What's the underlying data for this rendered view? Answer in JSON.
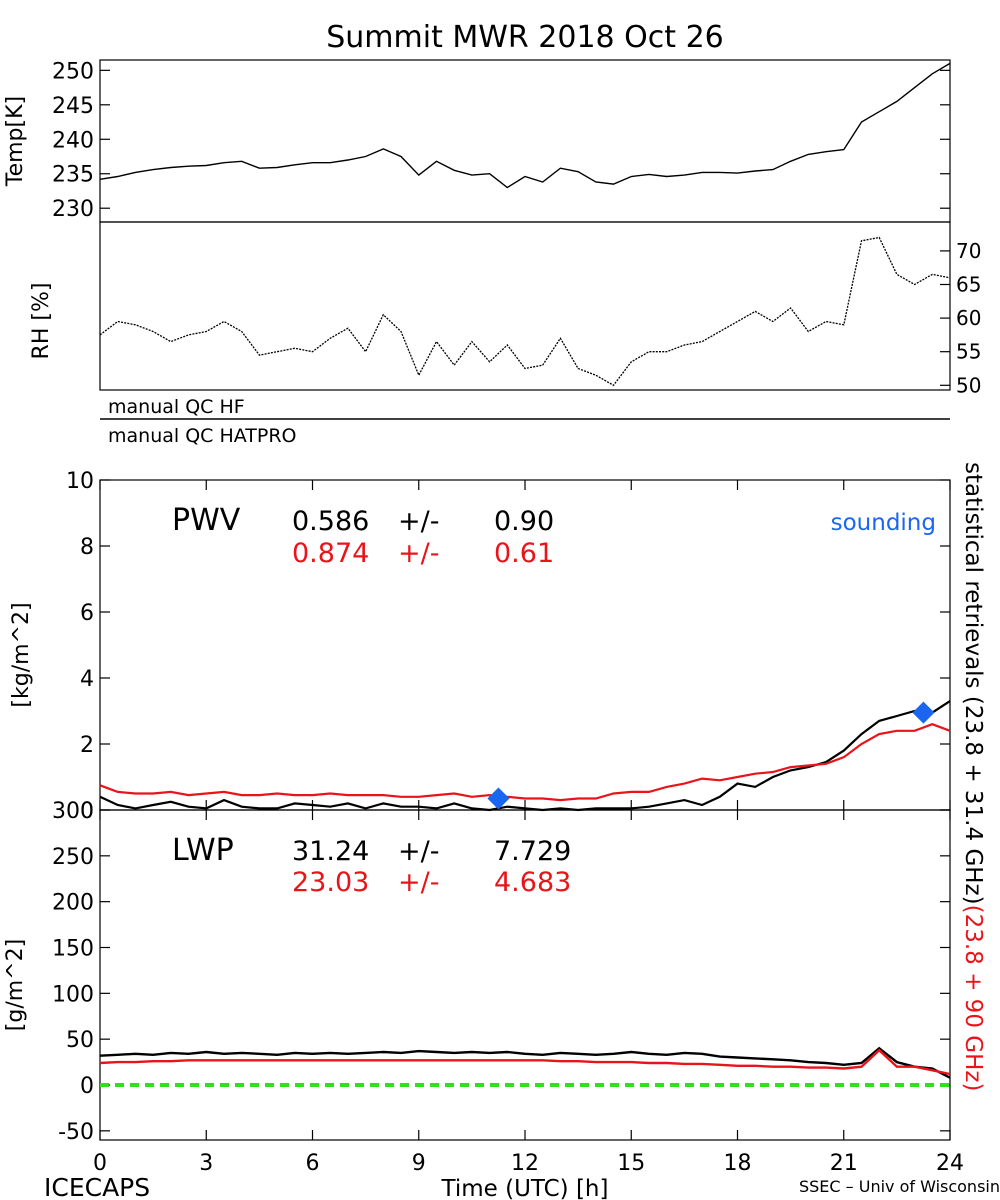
{
  "title": "Summit MWR 2018 Oct 26",
  "footer": {
    "left": "ICECAPS",
    "center": "Time (UTC) [h]",
    "right": "SSEC – Univ of Wisconsin"
  },
  "right_labels": {
    "black": "statistical retrievals (23.8 + 31.4 GHz)",
    "red": "(23.8 + 90 GHz)"
  },
  "colors": {
    "black": "#000000",
    "red": "#e8141a",
    "blue": "#1a66f0",
    "green": "#33dd22"
  },
  "chart_data": [
    {
      "id": "temp",
      "type": "line",
      "ylabel": "Temp[K]",
      "ylim": [
        228,
        251.5
      ],
      "yticks": [
        230,
        235,
        240,
        245,
        250
      ],
      "ytick_labels": [
        "230",
        "235",
        "240",
        "245",
        "250"
      ],
      "xlim": [
        0,
        24
      ],
      "series": [
        {
          "color": "black",
          "x": [
            0,
            0.5,
            1,
            1.5,
            2,
            2.5,
            3,
            3.5,
            4,
            4.5,
            5,
            5.5,
            6,
            6.5,
            7,
            7.5,
            8,
            8.5,
            9,
            9.5,
            10,
            10.5,
            11,
            11.5,
            12,
            12.5,
            13,
            13.5,
            14,
            14.5,
            15,
            15.5,
            16,
            16.5,
            17,
            17.5,
            18,
            18.5,
            19,
            19.5,
            20,
            20.5,
            21,
            21.5,
            22,
            22.5,
            23,
            23.5,
            24
          ],
          "y": [
            234.2,
            234.6,
            235.2,
            235.6,
            235.9,
            236.1,
            236.2,
            236.6,
            236.8,
            235.8,
            235.9,
            236.3,
            236.6,
            236.6,
            237.0,
            237.5,
            238.6,
            237.5,
            234.8,
            236.8,
            235.5,
            234.8,
            235.0,
            233.0,
            234.6,
            233.8,
            235.8,
            235.3,
            233.8,
            233.5,
            234.6,
            234.9,
            234.6,
            234.8,
            235.2,
            235.2,
            235.1,
            235.4,
            235.6,
            236.8,
            237.8,
            238.2,
            238.5,
            242.5,
            244.0,
            245.5,
            247.5,
            249.5,
            251.0
          ]
        }
      ]
    },
    {
      "id": "rh",
      "type": "line",
      "ylabel": "RH [%]",
      "ylim": [
        49.3,
        74.3
      ],
      "yticks": [
        50,
        55,
        60,
        65,
        70
      ],
      "ytick_labels": [
        "50",
        "55",
        "60",
        "65",
        "70"
      ],
      "xlim": [
        0,
        24
      ],
      "series": [
        {
          "color": "black",
          "x": [
            0,
            0.5,
            1,
            1.5,
            2,
            2.5,
            3,
            3.5,
            4,
            4.5,
            5,
            5.5,
            6,
            6.5,
            7,
            7.5,
            8,
            8.5,
            9,
            9.5,
            10,
            10.5,
            11,
            11.5,
            12,
            12.5,
            13,
            13.5,
            14,
            14.5,
            15,
            15.5,
            16,
            16.5,
            17,
            17.5,
            18,
            18.5,
            19,
            19.5,
            20,
            20.5,
            21,
            21.5,
            22,
            22.5,
            23,
            23.5,
            24
          ],
          "y": [
            57.5,
            59.5,
            59.0,
            58.0,
            56.5,
            57.5,
            58.0,
            59.5,
            58.0,
            54.5,
            55.0,
            55.5,
            55.0,
            57.0,
            58.5,
            55.0,
            60.5,
            58.0,
            51.5,
            56.5,
            53.0,
            56.5,
            53.5,
            56.0,
            52.5,
            53.0,
            57.0,
            52.5,
            51.5,
            50.0,
            53.5,
            55.0,
            55.0,
            56.0,
            56.5,
            58.0,
            59.5,
            61.0,
            59.5,
            61.5,
            58.0,
            59.5,
            59.0,
            71.5,
            72.0,
            66.5,
            65.0,
            66.5,
            66.0
          ]
        }
      ]
    },
    {
      "id": "pwv",
      "type": "line",
      "panel_label": "PWV",
      "ylabel": "[kg/m^2]",
      "ylim": [
        0,
        10
      ],
      "yticks": [
        0,
        2,
        4,
        6,
        8,
        10
      ],
      "ytick_labels": [
        "0",
        "2",
        "4",
        "6",
        "8",
        "10"
      ],
      "xlim": [
        0,
        24
      ],
      "stats": [
        {
          "color": "black",
          "mean": "0.586",
          "pm": "+/-",
          "sd": "0.90"
        },
        {
          "color": "red",
          "mean": "0.874",
          "pm": "+/-",
          "sd": "0.61"
        }
      ],
      "legend": {
        "text": "sounding",
        "color": "blue",
        "position": "top-right"
      },
      "series": [
        {
          "color": "black",
          "x": [
            0,
            0.5,
            1,
            1.5,
            2,
            2.5,
            3,
            3.5,
            4,
            4.5,
            5,
            5.5,
            6,
            6.5,
            7,
            7.5,
            8,
            8.5,
            9,
            9.5,
            10,
            10.5,
            11,
            11.5,
            12,
            12.5,
            13,
            13.5,
            14,
            14.5,
            15,
            15.5,
            16,
            16.5,
            17,
            17.5,
            18,
            18.5,
            19,
            19.5,
            20,
            20.5,
            21,
            21.5,
            22,
            22.5,
            23,
            23.5,
            24
          ],
          "y": [
            0.4,
            0.15,
            0.05,
            0.15,
            0.25,
            0.1,
            0.05,
            0.3,
            0.1,
            0.05,
            0.05,
            0.2,
            0.15,
            0.1,
            0.2,
            0.05,
            0.2,
            0.1,
            0.1,
            0.05,
            0.2,
            0.05,
            0.0,
            0.1,
            0.05,
            0.0,
            0.05,
            0.0,
            0.05,
            0.05,
            0.05,
            0.1,
            0.2,
            0.3,
            0.15,
            0.4,
            0.8,
            0.7,
            1.0,
            1.2,
            1.3,
            1.45,
            1.8,
            2.3,
            2.7,
            2.85,
            3.0,
            2.95,
            3.3
          ]
        },
        {
          "color": "red",
          "x": [
            0,
            0.5,
            1,
            1.5,
            2,
            2.5,
            3,
            3.5,
            4,
            4.5,
            5,
            5.5,
            6,
            6.5,
            7,
            7.5,
            8,
            8.5,
            9,
            9.5,
            10,
            10.5,
            11,
            11.5,
            12,
            12.5,
            13,
            13.5,
            14,
            14.5,
            15,
            15.5,
            16,
            16.5,
            17,
            17.5,
            18,
            18.5,
            19,
            19.5,
            20,
            20.5,
            21,
            21.5,
            22,
            22.5,
            23,
            23.5,
            24
          ],
          "y": [
            0.75,
            0.55,
            0.5,
            0.5,
            0.55,
            0.45,
            0.5,
            0.55,
            0.45,
            0.45,
            0.5,
            0.45,
            0.45,
            0.5,
            0.45,
            0.45,
            0.45,
            0.4,
            0.4,
            0.45,
            0.5,
            0.4,
            0.45,
            0.4,
            0.35,
            0.35,
            0.3,
            0.35,
            0.35,
            0.5,
            0.55,
            0.55,
            0.7,
            0.8,
            0.95,
            0.9,
            1.0,
            1.1,
            1.15,
            1.3,
            1.35,
            1.4,
            1.6,
            2.0,
            2.3,
            2.4,
            2.4,
            2.6,
            2.4
          ]
        },
        {
          "color": "blue",
          "marker": "diamond",
          "name": "sounding",
          "x": [
            11.25,
            23.25
          ],
          "y": [
            0.35,
            2.95
          ]
        }
      ]
    },
    {
      "id": "lwp",
      "type": "line",
      "panel_label": "LWP",
      "ylabel": "[g/m^2]",
      "ylim": [
        -60,
        300
      ],
      "yticks": [
        -50,
        0,
        50,
        100,
        150,
        200,
        250,
        300
      ],
      "ytick_labels": [
        "-50",
        "0",
        "50",
        "100",
        "150",
        "200",
        "250",
        "300"
      ],
      "xlim": [
        0,
        24
      ],
      "xticks": [
        0,
        3,
        6,
        9,
        12,
        15,
        18,
        21,
        24
      ],
      "xtick_labels": [
        "0",
        "3",
        "6",
        "9",
        "12",
        "15",
        "18",
        "21",
        "24"
      ],
      "stats": [
        {
          "color": "black",
          "mean": "31.24",
          "pm": "+/-",
          "sd": "7.729"
        },
        {
          "color": "red",
          "mean": "23.03",
          "pm": "+/-",
          "sd": "4.683"
        }
      ],
      "series": [
        {
          "color": "black",
          "x": [
            0,
            0.5,
            1,
            1.5,
            2,
            2.5,
            3,
            3.5,
            4,
            4.5,
            5,
            5.5,
            6,
            6.5,
            7,
            7.5,
            8,
            8.5,
            9,
            9.5,
            10,
            10.5,
            11,
            11.5,
            12,
            12.5,
            13,
            13.5,
            14,
            14.5,
            15,
            15.5,
            16,
            16.5,
            17,
            17.5,
            18,
            18.5,
            19,
            19.5,
            20,
            20.5,
            21,
            21.5,
            22,
            22.5,
            23,
            23.5,
            24
          ],
          "y": [
            32,
            33,
            34,
            33,
            35,
            34,
            36,
            34,
            35,
            34,
            33,
            35,
            34,
            35,
            34,
            35,
            36,
            35,
            37,
            36,
            35,
            36,
            35,
            36,
            34,
            33,
            35,
            34,
            33,
            34,
            36,
            34,
            33,
            35,
            34,
            31,
            30,
            29,
            28,
            27,
            25,
            24,
            22,
            24,
            40,
            25,
            20,
            18,
            8
          ]
        },
        {
          "color": "red",
          "x": [
            0,
            0.5,
            1,
            1.5,
            2,
            2.5,
            3,
            3.5,
            4,
            4.5,
            5,
            5.5,
            6,
            6.5,
            7,
            7.5,
            8,
            8.5,
            9,
            9.5,
            10,
            10.5,
            11,
            11.5,
            12,
            12.5,
            13,
            13.5,
            14,
            14.5,
            15,
            15.5,
            16,
            16.5,
            17,
            17.5,
            18,
            18.5,
            19,
            19.5,
            20,
            20.5,
            21,
            21.5,
            22,
            22.5,
            23,
            23.5,
            24
          ],
          "y": [
            24,
            25,
            25,
            26,
            26,
            27,
            27,
            27,
            27,
            27,
            27,
            27,
            27,
            27,
            27,
            27,
            27,
            27,
            27,
            27,
            27,
            27,
            27,
            27,
            27,
            27,
            26,
            26,
            25,
            25,
            25,
            24,
            24,
            23,
            23,
            22,
            21,
            21,
            20,
            20,
            19,
            19,
            18,
            20,
            38,
            20,
            20,
            16,
            12
          ]
        },
        {
          "color": "green",
          "style": "dashed",
          "x": [
            0,
            24
          ],
          "y": [
            0,
            0
          ]
        }
      ]
    }
  ],
  "qc_bars": [
    {
      "label": "manual QC HF"
    },
    {
      "label": "manual QC HATPRO"
    }
  ]
}
